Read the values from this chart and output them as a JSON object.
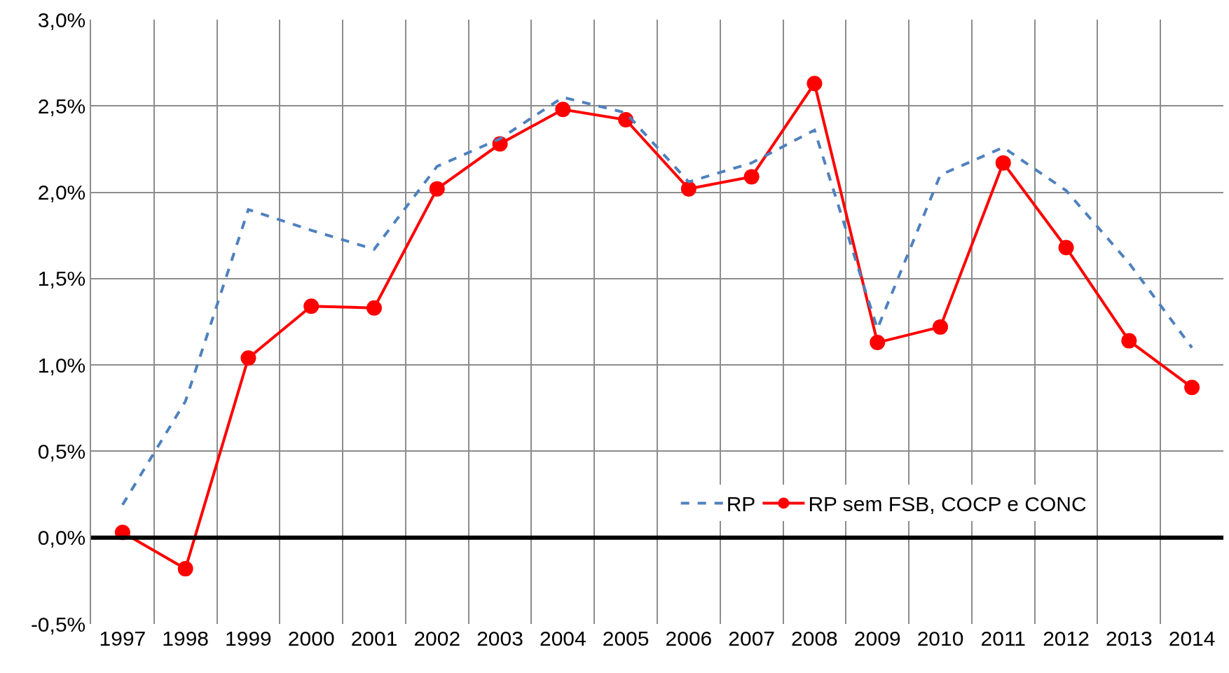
{
  "chart_data": {
    "type": "line",
    "categories": [
      "1997",
      "1998",
      "1999",
      "2000",
      "2001",
      "2002",
      "2003",
      "2004",
      "2005",
      "2006",
      "2007",
      "2008",
      "2009",
      "2010",
      "2011",
      "2012",
      "2013",
      "2014"
    ],
    "series": [
      {
        "name": "RP",
        "color": "#4f81bd",
        "line_style": "dashed",
        "marker": "none",
        "values": [
          0.19,
          0.79,
          1.9,
          1.78,
          1.67,
          2.15,
          2.31,
          2.55,
          2.46,
          2.06,
          2.17,
          2.36,
          1.21,
          2.1,
          2.26,
          2.01,
          1.59,
          1.1
        ]
      },
      {
        "name": "RP sem FSB, COCP e CONC",
        "color": "#ff0000",
        "line_style": "solid",
        "marker": "circle",
        "values": [
          0.03,
          -0.18,
          1.04,
          1.34,
          1.33,
          2.02,
          2.28,
          2.48,
          2.42,
          2.02,
          2.09,
          2.63,
          1.13,
          1.22,
          2.17,
          1.68,
          1.14,
          0.87
        ]
      }
    ],
    "ylim": [
      -0.5,
      3.0
    ],
    "yticks": [
      {
        "value": -0.5,
        "label": "-0,5%"
      },
      {
        "value": 0,
        "label": "0,0%"
      },
      {
        "value": 0.5,
        "label": "0,5%"
      },
      {
        "value": 1.0,
        "label": "1,0%"
      },
      {
        "value": 1.5,
        "label": "1,5%"
      },
      {
        "value": 2.0,
        "label": "2,0%"
      },
      {
        "value": 2.5,
        "label": "2,5%"
      },
      {
        "value": 3.0,
        "label": "3,0%"
      }
    ],
    "ref_lines": [
      {
        "axis": "y",
        "value": 0,
        "color": "#000000"
      }
    ],
    "grid": true,
    "legend": "bottom"
  }
}
